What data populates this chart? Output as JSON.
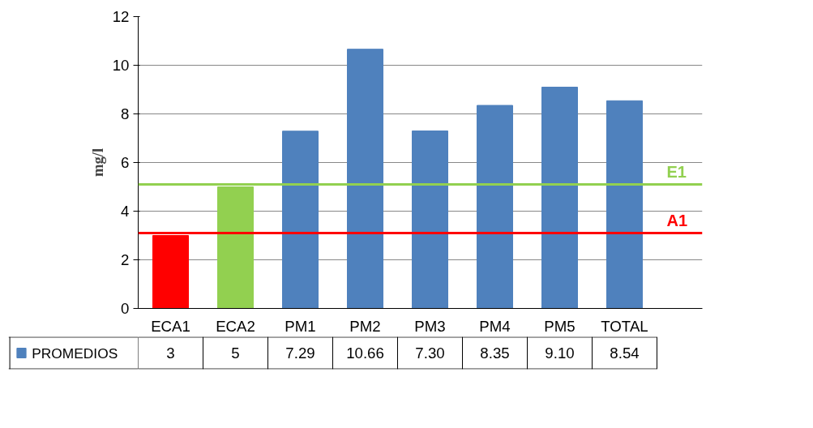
{
  "chart_data": {
    "type": "bar",
    "ylabel": "mg/l",
    "categories": [
      "ECA1",
      "ECA2",
      "PM1",
      "PM2",
      "PM3",
      "PM4",
      "PM5",
      "TOTAL"
    ],
    "series": [
      {
        "name": "PROMEDIOS",
        "color": "#4f81bd",
        "colors": [
          "#ff0000",
          "#92d050",
          "#4f81bd",
          "#4f81bd",
          "#4f81bd",
          "#4f81bd",
          "#4f81bd",
          "#4f81bd"
        ],
        "values": [
          3,
          5,
          7.29,
          10.66,
          7.3,
          8.35,
          9.1,
          8.54
        ],
        "value_labels": [
          "3",
          "5",
          "7.29",
          "10.66",
          "7.30",
          "8.35",
          "9.10",
          "8.54"
        ]
      }
    ],
    "ylim": [
      0,
      12
    ],
    "yticks": [
      0,
      2,
      4,
      6,
      8,
      10,
      12
    ],
    "grid": "y",
    "legend": "bottom",
    "ref_lines": [
      {
        "axis": "y",
        "value": 5.1,
        "label": "E1",
        "color": "#92d050"
      },
      {
        "axis": "y",
        "value": 3.1,
        "label": "A1",
        "color": "#ff0000"
      }
    ]
  }
}
